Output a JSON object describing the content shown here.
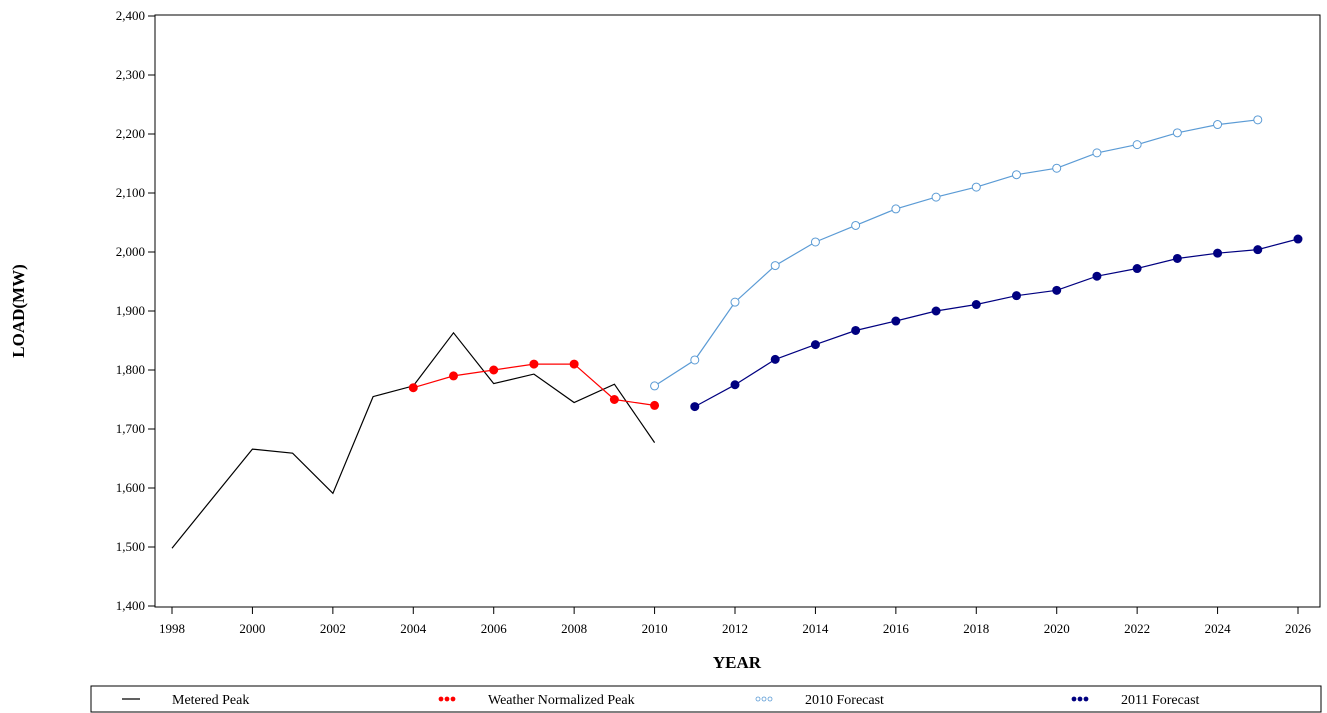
{
  "chart_data": {
    "type": "line",
    "title": "",
    "xlabel": "YEAR",
    "ylabel": "LOAD(MW)",
    "xlim": [
      1998,
      2026
    ],
    "ylim": [
      1400,
      2400
    ],
    "x_ticks": [
      1998,
      2000,
      2002,
      2004,
      2006,
      2008,
      2010,
      2012,
      2014,
      2016,
      2018,
      2020,
      2022,
      2024,
      2026
    ],
    "y_ticks": [
      1400,
      1500,
      1600,
      1700,
      1800,
      1900,
      2000,
      2100,
      2200,
      2300,
      2400
    ],
    "x_tick_labels": [
      "1998",
      "2000",
      "2002",
      "2004",
      "2006",
      "2008",
      "2010",
      "2012",
      "2014",
      "2016",
      "2018",
      "2020",
      "2022",
      "2024",
      "2026"
    ],
    "y_tick_labels": [
      "1,400",
      "1,500",
      "1,600",
      "1,700",
      "1,800",
      "1,900",
      "2,000",
      "2,100",
      "2,200",
      "2,300",
      "2,400"
    ],
    "grid": false,
    "legend_position": "bottom",
    "series": [
      {
        "name": "Metered Peak",
        "color": "#000000",
        "marker": "none",
        "x": [
          1998,
          1999,
          2000,
          2001,
          2002,
          2003,
          2004,
          2005,
          2006,
          2007,
          2008,
          2009,
          2010
        ],
        "y": [
          1498,
          1582,
          1666,
          1659,
          1591,
          1755,
          1773,
          1863,
          1777,
          1793,
          1745,
          1776,
          1677
        ]
      },
      {
        "name": "Weather Normalized Peak",
        "color": "#ff0000",
        "marker": "filled",
        "x": [
          2004,
          2005,
          2006,
          2007,
          2008,
          2009,
          2010
        ],
        "y": [
          1770,
          1790,
          1800,
          1810,
          1810,
          1750,
          1740
        ]
      },
      {
        "name": "2010 Forecast",
        "color": "#5b9bd5",
        "marker": "open",
        "x": [
          2010,
          2011,
          2012,
          2013,
          2014,
          2015,
          2016,
          2017,
          2018,
          2019,
          2020,
          2021,
          2022,
          2023,
          2024,
          2025
        ],
        "y": [
          1773,
          1817,
          1915,
          1977,
          2017,
          2045,
          2073,
          2093,
          2110,
          2131,
          2142,
          2168,
          2182,
          2202,
          2216,
          2224
        ]
      },
      {
        "name": "2011 Forecast",
        "color": "#000080",
        "marker": "filled",
        "x": [
          2011,
          2012,
          2013,
          2014,
          2015,
          2016,
          2017,
          2018,
          2019,
          2020,
          2021,
          2022,
          2023,
          2024,
          2025,
          2026
        ],
        "y": [
          1738,
          1775,
          1818,
          1843,
          1867,
          1883,
          1900,
          1911,
          1926,
          1935,
          1959,
          1972,
          1989,
          1998,
          2004,
          2022
        ]
      }
    ]
  }
}
